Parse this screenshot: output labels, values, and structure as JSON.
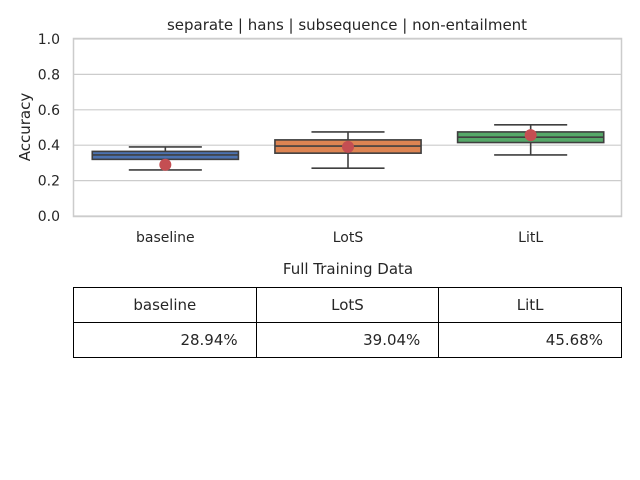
{
  "chart_data": {
    "type": "box",
    "title": "separate | hans | subsequence | non-entailment",
    "xlabel": "",
    "ylabel": "Accuracy",
    "ylim": [
      0.0,
      1.0
    ],
    "yticks": [
      "0.0",
      "0.2",
      "0.4",
      "0.6",
      "0.8",
      "1.0"
    ],
    "grid": true,
    "categories": [
      "baseline",
      "LotS",
      "LitL"
    ],
    "boxes": [
      {
        "category": "baseline",
        "whisker_low": 0.26,
        "q1": 0.32,
        "median": 0.345,
        "q3": 0.365,
        "whisker_high": 0.39,
        "mean": 0.2894,
        "color": "#4c72b0"
      },
      {
        "category": "LotS",
        "whisker_low": 0.27,
        "q1": 0.355,
        "median": 0.395,
        "q3": 0.43,
        "whisker_high": 0.475,
        "mean": 0.3904,
        "color": "#dd8452"
      },
      {
        "category": "LitL",
        "whisker_low": 0.345,
        "q1": 0.415,
        "median": 0.445,
        "q3": 0.475,
        "whisker_high": 0.515,
        "mean": 0.4568,
        "color": "#55a868"
      }
    ],
    "mean_marker_color": "#c44e52"
  },
  "table": {
    "title": "Full Training Data",
    "headers": [
      "baseline",
      "LotS",
      "LitL"
    ],
    "values": [
      "28.94%",
      "39.04%",
      "45.68%"
    ]
  }
}
